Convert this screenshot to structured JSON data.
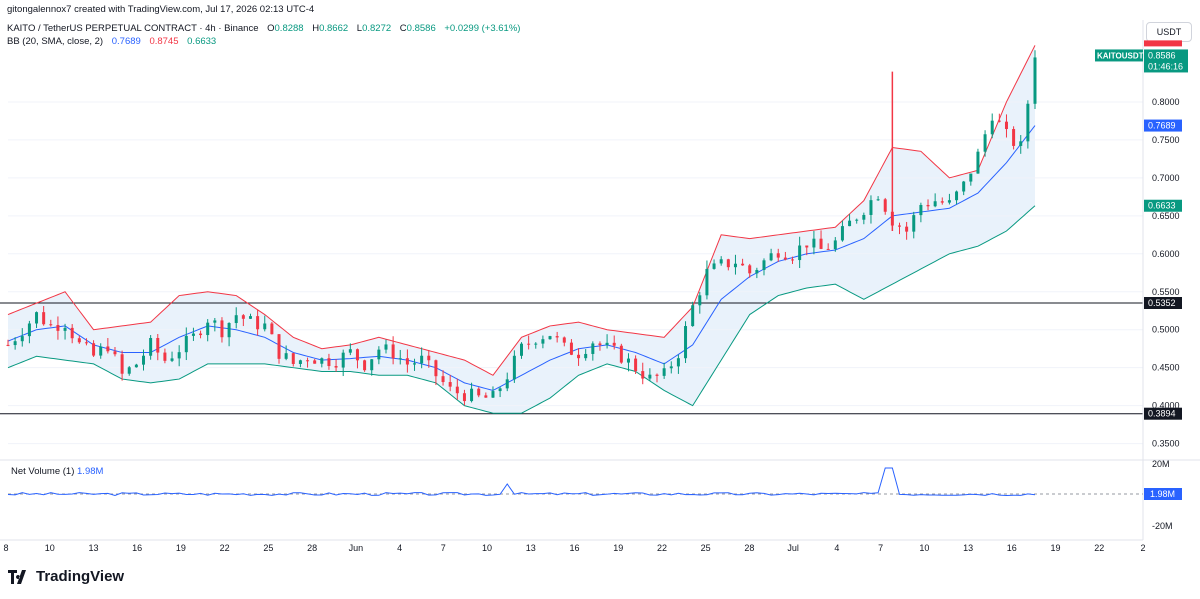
{
  "header": {
    "credit": "gitongalennox7 created with TradingView.com, Jul 17, 2026 02:13 UTC-4",
    "symbol": "KAITO / TetherUS PERPETUAL CONTRACT · 4h · Binance",
    "o_label": "O",
    "o_value": "0.8288",
    "h_label": "H",
    "h_value": "0.8662",
    "l_label": "L",
    "l_value": "0.8272",
    "c_label": "C",
    "c_value": "0.8586",
    "change": "+0.0299 (+3.61%)",
    "bb_label": "BB (20, SMA, close, 2)",
    "bb_basis": "0.7689",
    "bb_upper": "0.8745",
    "bb_lower": "0.6633"
  },
  "currency_button": "USDT",
  "volume_panel": {
    "label": "Net Volume (1)",
    "value": "1.98M"
  },
  "brand": "TradingView",
  "colors": {
    "up": "#089981",
    "down": "#f23645",
    "basis": "#2962ff",
    "band_fill": "#e3effa",
    "hline": "#131722"
  },
  "chart_data": {
    "type": "candlestick",
    "symbol": "KAITOUSDT.P",
    "interval": "4h",
    "y_ticks": [
      "0.8000",
      "0.7500",
      "0.7000",
      "0.6500",
      "0.6000",
      "0.5500",
      "0.5000",
      "0.4500",
      "0.4000",
      "0.3500"
    ],
    "ylim": [
      0.335,
      0.875
    ],
    "x_ticks": [
      "8",
      "10",
      "13",
      "16",
      "19",
      "22",
      "25",
      "28",
      "Jun",
      "4",
      "7",
      "10",
      "13",
      "16",
      "19",
      "22",
      "25",
      "28",
      "Jul",
      "4",
      "7",
      "10",
      "13",
      "16",
      "19",
      "22",
      "2"
    ],
    "horizontal_lines": [
      {
        "value": 0.5352,
        "label": "0.5352"
      },
      {
        "value": 0.3894,
        "label": "0.3894"
      }
    ],
    "price_labels": {
      "last": {
        "symbol": "KAITOUSDT.P",
        "price": "0.8586",
        "countdown": "01:46:16"
      },
      "upper_band_hidden": "0.8745",
      "basis": "0.7689",
      "lower": "0.6633"
    },
    "close_path": [
      [
        8,
        0.48
      ],
      [
        9,
        0.5
      ],
      [
        10,
        0.52
      ],
      [
        11,
        0.505
      ],
      [
        12,
        0.51
      ],
      [
        13,
        0.48
      ],
      [
        14,
        0.465
      ],
      [
        15,
        0.48
      ],
      [
        16,
        0.44
      ],
      [
        17,
        0.455
      ],
      [
        18,
        0.48
      ],
      [
        19,
        0.46
      ],
      [
        20,
        0.475
      ],
      [
        21,
        0.49
      ],
      [
        22,
        0.515
      ],
      [
        23,
        0.5
      ],
      [
        24,
        0.52
      ],
      [
        25,
        0.51
      ],
      [
        26,
        0.505
      ],
      [
        27,
        0.47
      ],
      [
        28,
        0.455
      ],
      [
        29,
        0.465
      ],
      [
        30,
        0.46
      ],
      [
        31,
        0.46
      ],
      [
        32,
        0.47
      ],
      [
        33,
        0.455
      ],
      [
        34,
        0.475
      ],
      [
        35,
        0.47
      ],
      [
        36,
        0.455
      ],
      [
        37,
        0.46
      ],
      [
        38,
        0.44
      ],
      [
        39,
        0.42
      ],
      [
        40,
        0.415
      ],
      [
        41,
        0.41
      ],
      [
        42,
        0.41
      ],
      [
        43,
        0.44
      ],
      [
        44,
        0.475
      ],
      [
        45,
        0.49
      ],
      [
        46,
        0.495
      ],
      [
        47,
        0.475
      ],
      [
        48,
        0.47
      ],
      [
        49,
        0.485
      ],
      [
        50,
        0.475
      ],
      [
        51,
        0.465
      ],
      [
        52,
        0.45
      ],
      [
        53,
        0.435
      ],
      [
        54,
        0.44
      ],
      [
        55,
        0.47
      ],
      [
        56,
        0.53
      ],
      [
        57,
        0.575
      ],
      [
        58,
        0.585
      ],
      [
        59,
        0.59
      ],
      [
        60,
        0.575
      ],
      [
        61,
        0.59
      ],
      [
        62,
        0.605
      ],
      [
        63,
        0.6
      ],
      [
        64,
        0.615
      ],
      [
        65,
        0.605
      ],
      [
        66,
        0.615
      ],
      [
        67,
        0.64
      ],
      [
        68,
        0.66
      ],
      [
        69,
        0.68
      ],
      [
        70,
        0.645
      ],
      [
        71,
        0.63
      ],
      [
        72,
        0.665
      ],
      [
        73,
        0.67
      ],
      [
        74,
        0.665
      ],
      [
        75,
        0.69
      ],
      [
        76,
        0.73
      ],
      [
        77,
        0.785
      ],
      [
        78,
        0.755
      ],
      [
        79,
        0.74
      ],
      [
        80,
        0.8586
      ]
    ],
    "upper_band": [
      [
        8,
        0.52
      ],
      [
        10,
        0.535
      ],
      [
        12,
        0.55
      ],
      [
        14,
        0.5
      ],
      [
        16,
        0.505
      ],
      [
        18,
        0.51
      ],
      [
        20,
        0.545
      ],
      [
        22,
        0.55
      ],
      [
        24,
        0.545
      ],
      [
        26,
        0.52
      ],
      [
        28,
        0.49
      ],
      [
        30,
        0.475
      ],
      [
        32,
        0.48
      ],
      [
        34,
        0.49
      ],
      [
        36,
        0.48
      ],
      [
        38,
        0.47
      ],
      [
        40,
        0.46
      ],
      [
        42,
        0.44
      ],
      [
        44,
        0.49
      ],
      [
        46,
        0.505
      ],
      [
        48,
        0.51
      ],
      [
        50,
        0.5
      ],
      [
        52,
        0.495
      ],
      [
        54,
        0.49
      ],
      [
        56,
        0.53
      ],
      [
        58,
        0.625
      ],
      [
        60,
        0.62
      ],
      [
        62,
        0.625
      ],
      [
        64,
        0.63
      ],
      [
        66,
        0.635
      ],
      [
        68,
        0.67
      ],
      [
        70,
        0.74
      ],
      [
        72,
        0.735
      ],
      [
        74,
        0.7
      ],
      [
        76,
        0.71
      ],
      [
        78,
        0.8
      ],
      [
        80,
        0.8745
      ]
    ],
    "basis_band": [
      [
        8,
        0.485
      ],
      [
        10,
        0.5
      ],
      [
        12,
        0.505
      ],
      [
        14,
        0.48
      ],
      [
        16,
        0.47
      ],
      [
        18,
        0.47
      ],
      [
        20,
        0.49
      ],
      [
        22,
        0.505
      ],
      [
        24,
        0.5
      ],
      [
        26,
        0.49
      ],
      [
        28,
        0.47
      ],
      [
        30,
        0.46
      ],
      [
        32,
        0.462
      ],
      [
        34,
        0.465
      ],
      [
        36,
        0.46
      ],
      [
        38,
        0.45
      ],
      [
        40,
        0.43
      ],
      [
        42,
        0.42
      ],
      [
        44,
        0.44
      ],
      [
        46,
        0.46
      ],
      [
        48,
        0.475
      ],
      [
        50,
        0.48
      ],
      [
        52,
        0.47
      ],
      [
        54,
        0.455
      ],
      [
        56,
        0.48
      ],
      [
        58,
        0.54
      ],
      [
        60,
        0.57
      ],
      [
        62,
        0.59
      ],
      [
        64,
        0.6
      ],
      [
        66,
        0.605
      ],
      [
        68,
        0.62
      ],
      [
        70,
        0.65
      ],
      [
        72,
        0.655
      ],
      [
        74,
        0.66
      ],
      [
        76,
        0.68
      ],
      [
        78,
        0.72
      ],
      [
        80,
        0.7689
      ]
    ],
    "lower_band": [
      [
        8,
        0.45
      ],
      [
        10,
        0.465
      ],
      [
        12,
        0.46
      ],
      [
        14,
        0.455
      ],
      [
        16,
        0.435
      ],
      [
        18,
        0.43
      ],
      [
        20,
        0.435
      ],
      [
        22,
        0.455
      ],
      [
        24,
        0.455
      ],
      [
        26,
        0.455
      ],
      [
        28,
        0.45
      ],
      [
        30,
        0.445
      ],
      [
        32,
        0.445
      ],
      [
        34,
        0.44
      ],
      [
        36,
        0.44
      ],
      [
        38,
        0.43
      ],
      [
        40,
        0.4
      ],
      [
        42,
        0.39
      ],
      [
        44,
        0.39
      ],
      [
        46,
        0.41
      ],
      [
        48,
        0.44
      ],
      [
        50,
        0.455
      ],
      [
        52,
        0.445
      ],
      [
        54,
        0.42
      ],
      [
        56,
        0.4
      ],
      [
        58,
        0.46
      ],
      [
        60,
        0.52
      ],
      [
        62,
        0.545
      ],
      [
        64,
        0.555
      ],
      [
        66,
        0.56
      ],
      [
        68,
        0.54
      ],
      [
        70,
        0.56
      ],
      [
        72,
        0.58
      ],
      [
        74,
        0.6
      ],
      [
        76,
        0.61
      ],
      [
        78,
        0.63
      ],
      [
        80,
        0.6633
      ]
    ],
    "net_volume": {
      "ticks": [
        "20M",
        "-20M"
      ],
      "last": "1.98M"
    }
  }
}
